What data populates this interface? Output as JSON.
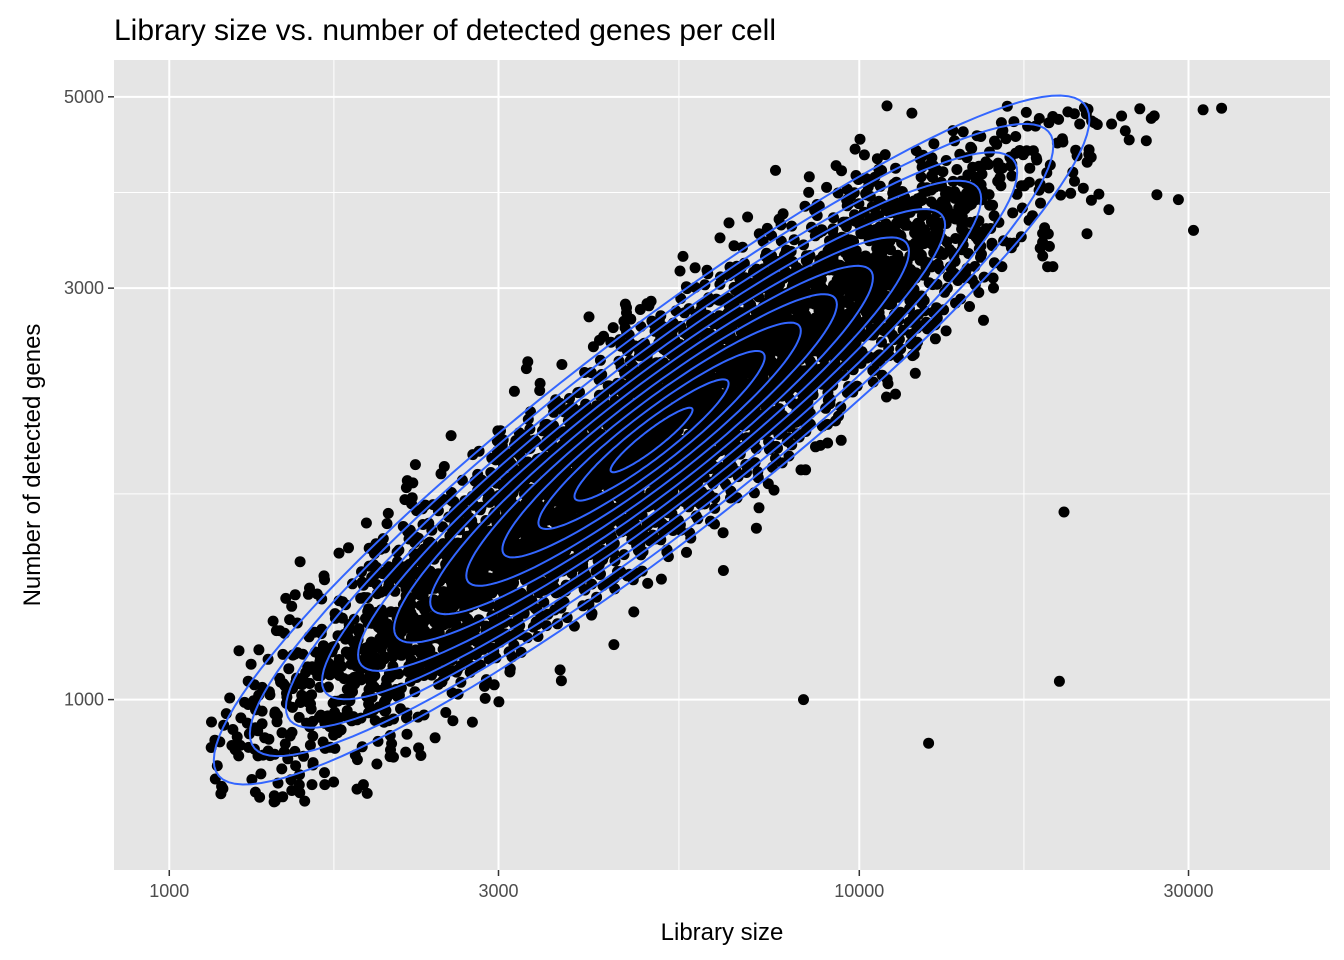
{
  "chart_data": {
    "type": "scatter",
    "title": "Library size vs. number of detected genes per cell",
    "xlabel": "Library size",
    "ylabel": "Number of detected genes",
    "x_scale": "log10",
    "y_scale": "log10",
    "xlim": [
      1000,
      40000
    ],
    "ylim": [
      700,
      5000
    ],
    "x_ticks": [
      1000,
      3000,
      10000,
      30000
    ],
    "x_tick_labels": [
      "1000",
      "3000",
      "10000",
      "30000"
    ],
    "y_ticks": [
      1000,
      3000,
      5000
    ],
    "y_tick_labels": [
      "1000",
      "3000",
      "5000"
    ],
    "grid": true,
    "point_color": "#000000",
    "contour_color": "#3366FF",
    "panel_background": "#E5E5E5",
    "grid_color": "#FFFFFF",
    "density": {
      "center_x": 5000,
      "center_y": 2000,
      "log_sd_x": 0.27,
      "log_sd_y": 0.17,
      "correlation": 0.93,
      "contour_levels": 12
    },
    "highlighted_points": [
      {
        "x": 1150,
        "y": 880
      },
      {
        "x": 8300,
        "y": 1000
      },
      {
        "x": 12600,
        "y": 890
      },
      {
        "x": 19500,
        "y": 1050
      },
      {
        "x": 19800,
        "y": 1650
      },
      {
        "x": 31500,
        "y": 4830
      },
      {
        "x": 33500,
        "y": 4850
      },
      {
        "x": 24000,
        "y": 4750
      },
      {
        "x": 26500,
        "y": 4720
      },
      {
        "x": 20500,
        "y": 4780
      },
      {
        "x": 29000,
        "y": 3800
      },
      {
        "x": 27000,
        "y": 3850
      },
      {
        "x": 23000,
        "y": 3700
      },
      {
        "x": 30500,
        "y": 3500
      }
    ]
  }
}
